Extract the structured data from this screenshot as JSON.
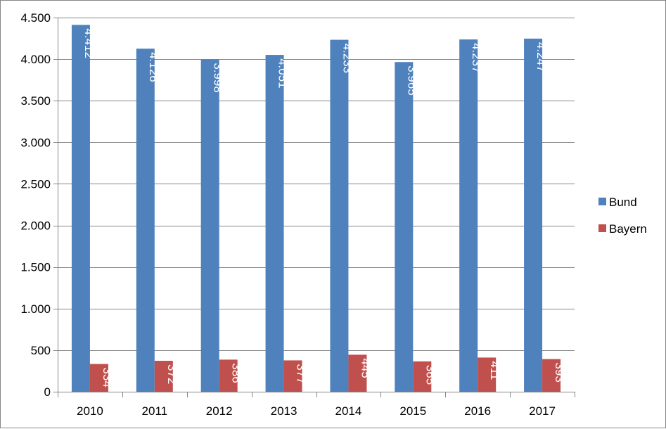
{
  "chart_data": {
    "type": "bar",
    "categories": [
      "2010",
      "2011",
      "2012",
      "2013",
      "2014",
      "2015",
      "2016",
      "2017"
    ],
    "series": [
      {
        "name": "Bund",
        "color": "#4F81BD",
        "values": [
          4412,
          4126,
          3998,
          4051,
          4233,
          3965,
          4237,
          4247
        ],
        "labels": [
          "4.412",
          "4.126",
          "3.998",
          "4.051",
          "4.233",
          "3.965",
          "4.237",
          "4.247"
        ]
      },
      {
        "name": "Bayern",
        "color": "#C0504D",
        "values": [
          334,
          372,
          386,
          377,
          445,
          365,
          411,
          393
        ],
        "labels": [
          "334",
          "372",
          "386",
          "377",
          "445",
          "365",
          "411",
          "393"
        ]
      }
    ],
    "ylim": [
      0,
      4500
    ],
    "yticks": [
      0,
      500,
      1000,
      1500,
      2000,
      2500,
      3000,
      3500,
      4000,
      4500
    ],
    "ytick_labels": [
      "0",
      "500",
      "1.000",
      "1.500",
      "2.000",
      "2.500",
      "3.000",
      "3.500",
      "4.000",
      "4.500"
    ],
    "grid": true,
    "legend_position": "right",
    "data_labels": "inside-end-rotated"
  }
}
